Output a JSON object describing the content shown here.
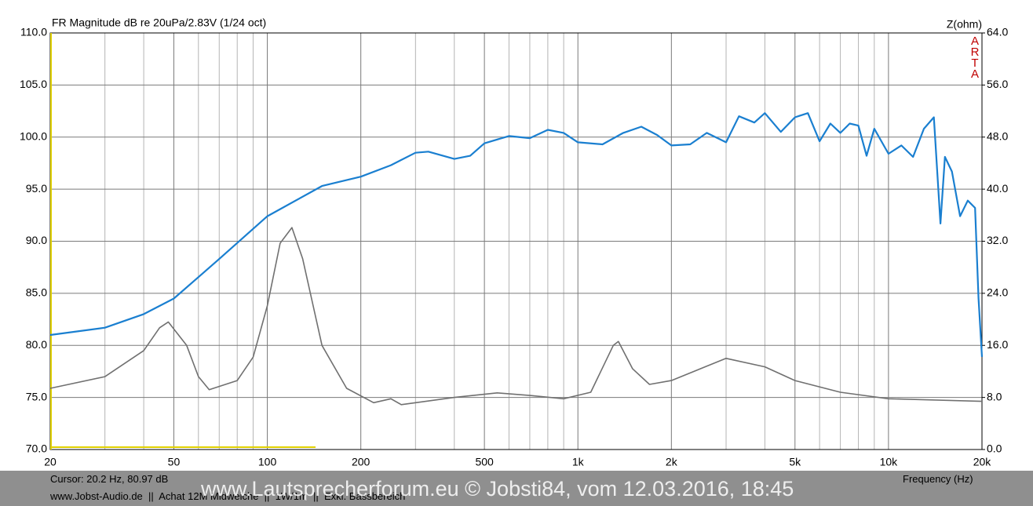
{
  "chart_data": {
    "type": "line",
    "title": "FR Magnitude dB re 20uPa/2.83V (1/24 oct)",
    "y2_label": "Z(ohm)",
    "x_label": "Frequency (Hz)",
    "badge": "ARTA",
    "xscale": "log",
    "grid": true,
    "xlim": [
      20,
      20000
    ],
    "xticks": [
      20,
      50,
      100,
      200,
      500,
      {
        "value": 1000,
        "label": "1k"
      },
      {
        "value": 2000,
        "label": "2k"
      },
      {
        "value": 5000,
        "label": "5k"
      },
      {
        "value": 10000,
        "label": "10k"
      },
      {
        "value": 20000,
        "label": "20k"
      }
    ],
    "xgrid_minor": [
      30,
      40,
      60,
      70,
      80,
      90,
      300,
      400,
      600,
      700,
      800,
      900,
      3000,
      4000,
      6000,
      7000,
      8000,
      9000
    ],
    "ylim": [
      70,
      110
    ],
    "yticks": [
      {
        "value": 70,
        "label": "70.0"
      },
      {
        "value": 75,
        "label": "75.0"
      },
      {
        "value": 80,
        "label": "80.0"
      },
      {
        "value": 85,
        "label": "85.0"
      },
      {
        "value": 90,
        "label": "90.0"
      },
      {
        "value": 95,
        "label": "95.0"
      },
      {
        "value": 100,
        "label": "100.0"
      },
      {
        "value": 105,
        "label": "105.0"
      },
      {
        "value": 110,
        "label": "110.0"
      }
    ],
    "y2lim": [
      0,
      64
    ],
    "y2ticks": [
      {
        "value": 0,
        "label": "0.0"
      },
      {
        "value": 8,
        "label": "8.0"
      },
      {
        "value": 16,
        "label": "16.0"
      },
      {
        "value": 24,
        "label": "24.0"
      },
      {
        "value": 32,
        "label": "32.0"
      },
      {
        "value": 40,
        "label": "40.0"
      },
      {
        "value": 48,
        "label": "48.0"
      },
      {
        "value": 56,
        "label": "56.0"
      },
      {
        "value": 64,
        "label": "64.0"
      }
    ],
    "series": [
      {
        "color": "#1a7fd0",
        "x": [
          20,
          30,
          40,
          50,
          70,
          100,
          150,
          200,
          250,
          300,
          330,
          400,
          450,
          500,
          600,
          700,
          800,
          900,
          1000,
          1200,
          1400,
          1600,
          1800,
          2000,
          2300,
          2600,
          3000,
          3300,
          3700,
          4000,
          4500,
          5000,
          5500,
          6000,
          6500,
          7000,
          7500,
          8000,
          8500,
          9000,
          10000,
          11000,
          12000,
          13000,
          14000,
          14700,
          15200,
          16000,
          17000,
          18000,
          19000,
          19500,
          20000
        ],
        "values": [
          81.0,
          81.7,
          83.0,
          84.5,
          88.3,
          92.4,
          95.3,
          96.2,
          97.3,
          98.5,
          98.6,
          97.9,
          98.2,
          99.4,
          100.1,
          99.9,
          100.7,
          100.4,
          99.5,
          99.3,
          100.4,
          101.0,
          100.2,
          99.2,
          99.3,
          100.4,
          99.5,
          102.0,
          101.4,
          102.3,
          100.5,
          101.9,
          102.3,
          99.6,
          101.3,
          100.4,
          101.3,
          101.1,
          98.2,
          100.8,
          98.4,
          99.2,
          98.1,
          100.8,
          101.9,
          91.7,
          98.1,
          96.7,
          92.4,
          93.9,
          93.2,
          84.5,
          78.9
        ]
      },
      {
        "color": "#707070",
        "axis": "y2",
        "x": [
          20,
          30,
          40,
          45,
          48,
          55,
          60,
          65,
          80,
          90,
          100,
          110,
          120,
          130,
          150,
          180,
          220,
          250,
          270,
          400,
          550,
          700,
          900,
          1100,
          1300,
          1350,
          1500,
          1700,
          2000,
          3000,
          4000,
          5000,
          7000,
          10000,
          20000
        ],
        "values": [
          9.4,
          11.2,
          15.2,
          18.7,
          19.6,
          16.0,
          11.2,
          9.2,
          10.6,
          14.2,
          22.1,
          31.7,
          34.1,
          29.3,
          16.0,
          9.4,
          7.2,
          7.8,
          6.9,
          8.0,
          8.7,
          8.3,
          7.8,
          8.8,
          16.0,
          16.6,
          12.4,
          10.0,
          10.6,
          14.0,
          12.7,
          10.6,
          8.8,
          7.8,
          7.4
        ]
      }
    ]
  },
  "footer": {
    "cursor": "Cursor: 20.2 Hz, 80.97 dB",
    "info": "www.Jobst-Audio.de  ||  Achat 12M Midweiche  ||  1W/1m  ||  Exkl. Bassbereich",
    "watermark": "www.Lautsprecherforum.eu © Jobsti84, vom 12.03.2016, 18:45"
  }
}
